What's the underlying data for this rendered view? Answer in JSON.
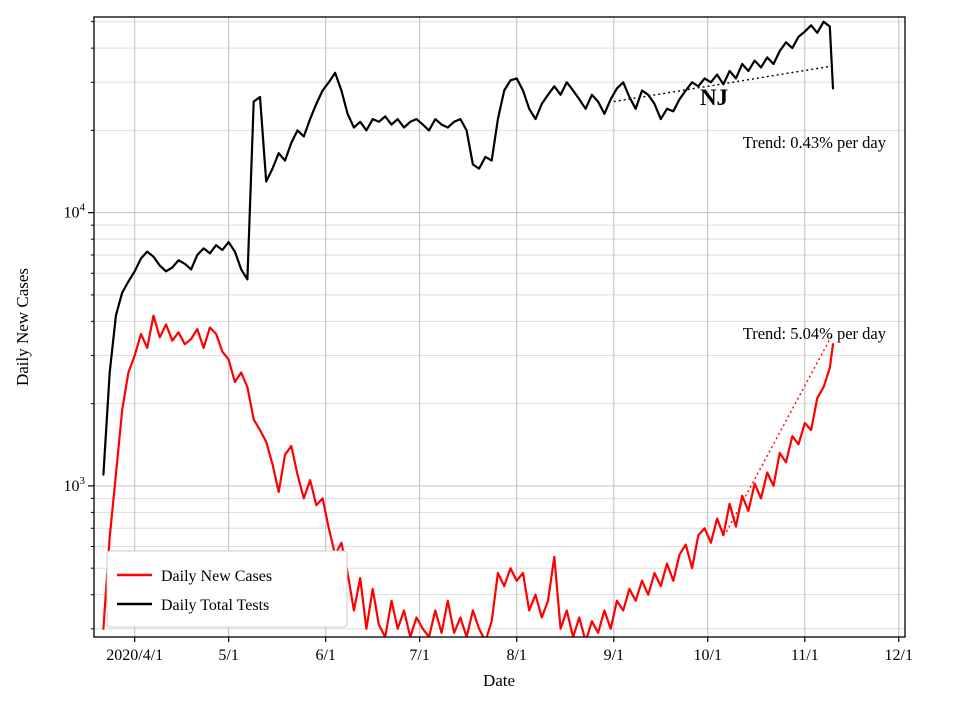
{
  "figure": {
    "state_label": "NJ"
  },
  "chart_data": {
    "type": "line",
    "title": "",
    "xlabel": "Date",
    "ylabel": "Daily New Cases",
    "yscale": "log",
    "ylim": [
      280,
      52000
    ],
    "x_domain": [
      0,
      259
    ],
    "grid": {
      "major_color": "#c0c0c0",
      "minor_color": "#dddddd"
    },
    "x_ticks": [
      {
        "day": 13,
        "label": "2020/4/1"
      },
      {
        "day": 43,
        "label": "5/1"
      },
      {
        "day": 74,
        "label": "6/1"
      },
      {
        "day": 104,
        "label": "7/1"
      },
      {
        "day": 135,
        "label": "8/1"
      },
      {
        "day": 166,
        "label": "9/1"
      },
      {
        "day": 196,
        "label": "10/1"
      },
      {
        "day": 227,
        "label": "11/1"
      },
      {
        "day": 257,
        "label": "12/1"
      }
    ],
    "y_ticks": [
      {
        "value": 1000,
        "base": "10",
        "exp": "3"
      },
      {
        "value": 10000,
        "base": "10",
        "exp": "4"
      }
    ],
    "days": [
      3,
      5,
      7,
      9,
      11,
      13,
      15,
      17,
      19,
      21,
      23,
      25,
      27,
      29,
      31,
      33,
      35,
      37,
      39,
      41,
      43,
      45,
      47,
      49,
      51,
      53,
      55,
      57,
      59,
      61,
      63,
      65,
      67,
      69,
      71,
      73,
      75,
      77,
      79,
      81,
      83,
      85,
      87,
      89,
      91,
      93,
      95,
      97,
      99,
      101,
      103,
      105,
      107,
      109,
      111,
      113,
      115,
      117,
      119,
      121,
      123,
      125,
      127,
      129,
      131,
      133,
      135,
      137,
      139,
      141,
      143,
      145,
      147,
      149,
      151,
      153,
      155,
      157,
      159,
      161,
      163,
      165,
      167,
      169,
      171,
      173,
      175,
      177,
      179,
      181,
      183,
      185,
      187,
      189,
      191,
      193,
      195,
      197,
      199,
      201,
      203,
      205,
      207,
      209,
      211,
      213,
      215,
      217,
      219,
      221,
      223,
      225,
      227,
      229,
      231,
      233,
      235,
      236
    ],
    "series": [
      {
        "id": "daily-new-cases",
        "name": "Daily New Cases",
        "color": "#ff0000",
        "values": [
          300,
          650,
          1100,
          1900,
          2600,
          3000,
          3600,
          3200,
          4200,
          3500,
          3900,
          3400,
          3650,
          3300,
          3450,
          3750,
          3200,
          3800,
          3600,
          3100,
          2900,
          2400,
          2600,
          2300,
          1750,
          1600,
          1450,
          1200,
          950,
          1300,
          1400,
          1100,
          900,
          1050,
          850,
          900,
          700,
          560,
          620,
          480,
          350,
          460,
          300,
          420,
          310,
          280,
          380,
          300,
          350,
          280,
          330,
          300,
          280,
          350,
          290,
          380,
          290,
          330,
          280,
          350,
          300,
          270,
          320,
          480,
          430,
          500,
          450,
          480,
          350,
          400,
          330,
          380,
          550,
          300,
          350,
          280,
          330,
          270,
          320,
          290,
          350,
          300,
          380,
          350,
          420,
          380,
          450,
          400,
          480,
          430,
          520,
          450,
          560,
          610,
          500,
          660,
          700,
          620,
          760,
          660,
          860,
          710,
          920,
          810,
          1020,
          900,
          1120,
          1000,
          1320,
          1220,
          1520,
          1420,
          1700,
          1600,
          2100,
          2300,
          2700,
          3300
        ]
      },
      {
        "id": "daily-total-tests",
        "name": "Daily Total Tests",
        "color": "#000000",
        "values": [
          1100,
          2600,
          4200,
          5100,
          5600,
          6100,
          6800,
          7200,
          6900,
          6400,
          6100,
          6300,
          6700,
          6500,
          6200,
          7000,
          7400,
          7100,
          7600,
          7300,
          7800,
          7200,
          6200,
          5700,
          25500,
          26500,
          13000,
          14500,
          16500,
          15500,
          18000,
          20000,
          19000,
          22000,
          25000,
          28000,
          30000,
          32500,
          28000,
          23000,
          20500,
          21500,
          20000,
          22000,
          21500,
          22500,
          21000,
          22000,
          20500,
          21500,
          22000,
          21000,
          20000,
          22000,
          21000,
          20500,
          21500,
          22000,
          20000,
          15000,
          14500,
          16000,
          15500,
          22000,
          28000,
          30500,
          31000,
          28000,
          24000,
          22000,
          25000,
          27000,
          29000,
          27000,
          30000,
          28000,
          26000,
          24000,
          27000,
          25500,
          23000,
          26000,
          28500,
          30000,
          26500,
          24000,
          28000,
          27000,
          25000,
          22000,
          24000,
          23500,
          26000,
          28000,
          30000,
          29000,
          31000,
          30000,
          32000,
          29500,
          33000,
          31000,
          35000,
          33000,
          36000,
          34000,
          37000,
          35000,
          39000,
          42000,
          40000,
          44000,
          46000,
          48500,
          45500,
          50000,
          48000,
          28500
        ]
      }
    ],
    "trends": [
      {
        "label": "Trend: 0.43% per day",
        "series": "Daily Total Tests",
        "rate_pct_per_day": 0.43,
        "day_start": 166,
        "day_end": 236,
        "value_start": 25500,
        "color": "#000000"
      },
      {
        "label": "Trend: 5.04% per day",
        "series": "Daily New Cases",
        "rate_pct_per_day": 5.04,
        "day_start": 202,
        "day_end": 236,
        "value_start": 680,
        "color": "#ff0000"
      }
    ],
    "legend": {
      "position": "lower left",
      "entries": [
        "Daily New Cases",
        "Daily Total Tests"
      ]
    }
  }
}
